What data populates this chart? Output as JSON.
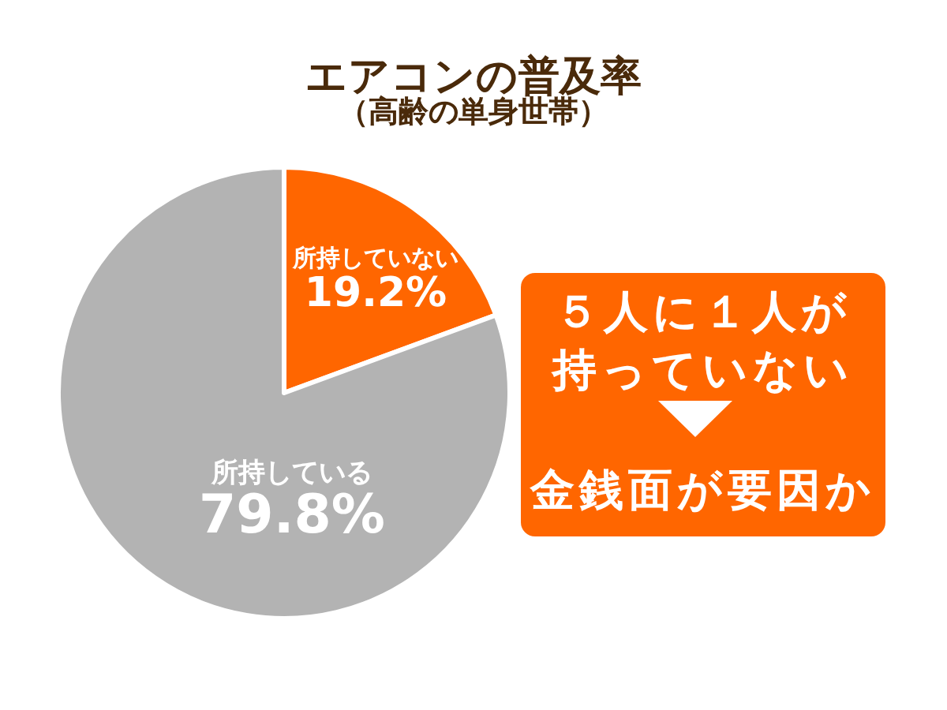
{
  "chart_data": {
    "type": "pie",
    "title": "エアコンの普及率",
    "subtitle": "（高齢の単身世帯）",
    "categories": [
      "所持していない",
      "所持している"
    ],
    "values": [
      19.2,
      79.8
    ],
    "colors": [
      "#ff6600",
      "#b3b3b3"
    ],
    "value_labels": [
      "19.2%",
      "79.8%"
    ],
    "annotations": [
      "５人に１人が持っていない",
      "金銭面が要因か"
    ]
  }
}
